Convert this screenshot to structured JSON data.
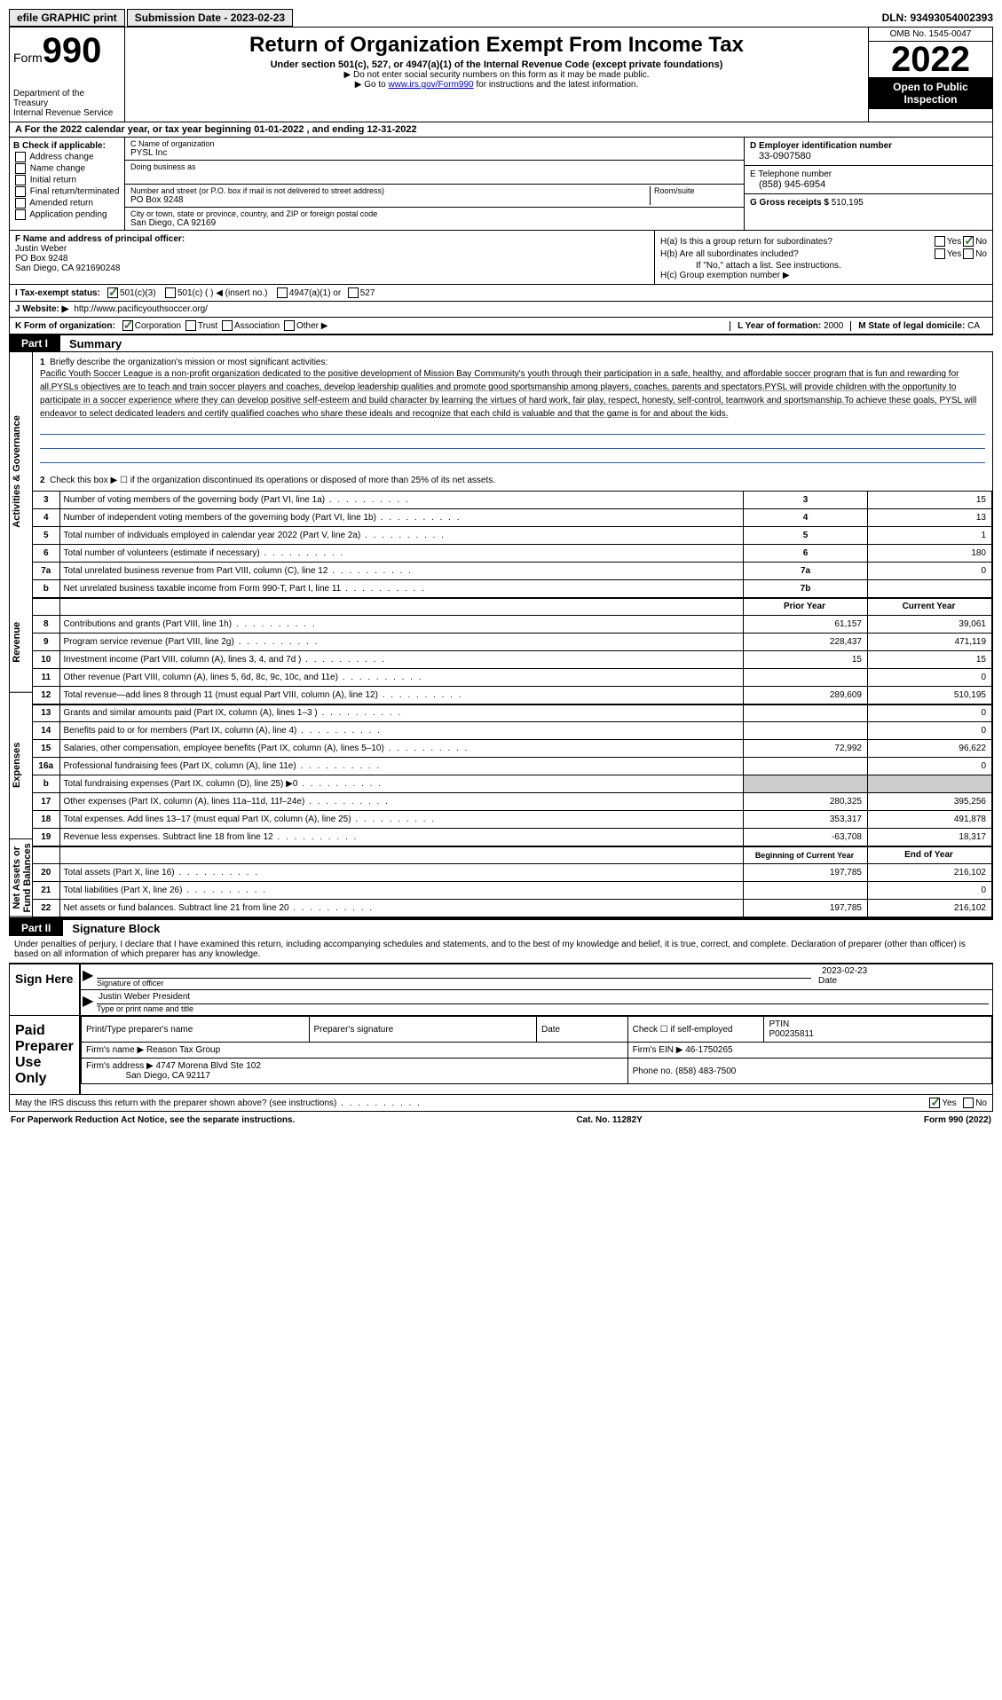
{
  "topbar": {
    "efile": "efile GRAPHIC print",
    "submission_label": "Submission Date - 2023-02-23",
    "dln": "DLN: 93493054002393"
  },
  "header": {
    "form_prefix": "Form",
    "form_num": "990",
    "dept": "Department of the Treasury\nInternal Revenue Service",
    "title": "Return of Organization Exempt From Income Tax",
    "subtitle": "Under section 501(c), 527, or 4947(a)(1) of the Internal Revenue Code (except private foundations)",
    "note1": "▶ Do not enter social security numbers on this form as it may be made public.",
    "note2_pre": "▶ Go to ",
    "note2_link": "www.irs.gov/Form990",
    "note2_post": " for instructions and the latest information.",
    "omb": "OMB No. 1545-0047",
    "year": "2022",
    "open": "Open to Public Inspection"
  },
  "row_a": "A For the 2022 calendar year, or tax year beginning 01-01-2022   , and ending 12-31-2022",
  "section_b": {
    "header": "B Check if applicable:",
    "items": [
      "Address change",
      "Name change",
      "Initial return",
      "Final return/terminated",
      "Amended return",
      "Application pending"
    ]
  },
  "section_c": {
    "c_label": "C Name of organization",
    "org_name": "PYSL Inc",
    "dba_label": "Doing business as",
    "addr_label": "Number and street (or P.O. box if mail is not delivered to street address)",
    "room_label": "Room/suite",
    "addr": "PO Box 9248",
    "city_label": "City or town, state or province, country, and ZIP or foreign postal code",
    "city": "San Diego, CA   92169"
  },
  "section_d": {
    "d_label": "D Employer identification number",
    "ein": "33-0907580",
    "e_label": "E Telephone number",
    "phone": "(858) 945-6954",
    "g_label": "G Gross receipts $",
    "gross": "510,195"
  },
  "section_f": {
    "label": "F  Name and address of principal officer:",
    "name": "Justin Weber",
    "addr1": "PO Box 9248",
    "addr2": "San Diego, CA   921690248"
  },
  "section_h": {
    "ha": "H(a)  Is this a group return for subordinates?",
    "hb": "H(b)  Are all subordinates included?",
    "hb_note": "If \"No,\" attach a list. See instructions.",
    "hc": "H(c)  Group exemption number ▶"
  },
  "row_i": {
    "label": "I   Tax-exempt status:",
    "opts": [
      "501(c)(3)",
      "501(c) (  ) ◀ (insert no.)",
      "4947(a)(1) or",
      "527"
    ]
  },
  "row_j": {
    "label": "J  Website: ▶",
    "url": "http://www.pacificyouthsoccer.org/"
  },
  "row_k": {
    "label": "K Form of organization:",
    "opts": [
      "Corporation",
      "Trust",
      "Association",
      "Other ▶"
    ]
  },
  "row_l": {
    "l_label": "L Year of formation:",
    "l_val": "2000",
    "m_label": "M State of legal domicile:",
    "m_val": "CA"
  },
  "part1": {
    "tab": "Part I",
    "title": "Summary"
  },
  "mission": {
    "num": "1",
    "label": "Briefly describe the organization's mission or most significant activities:",
    "text": "Pacific Youth Soccer League is a non-profit organization dedicated to the positive development of Mission Bay Community's youth through their participation in a safe, healthy, and affordable soccer program that is fun and rewarding for all.PYSLs objectives are to teach and train soccer players and coaches, develop leadership qualities and promote good sportsmanship among players, coaches, parents and spectators.PYSL will provide children with the opportunity to participate in a soccer experience where they can develop positive self-esteem and build character by learning the virtues of hard work, fair play, respect, honesty, self-control, teamwork and sportsmanship.To achieve these goals, PYSL will endeavor to select dedicated leaders and certify qualified coaches who share these ideals and recognize that each child is valuable and that the game is for and about the kids."
  },
  "line2": "Check this box ▶ ☐ if the organization discontinued its operations or disposed of more than 25% of its net assets.",
  "sidebars": {
    "s1": "Activities & Governance",
    "s2": "Revenue",
    "s3": "Expenses",
    "s4": "Net Assets or Fund Balances"
  },
  "rows_single": [
    {
      "n": "3",
      "d": "Number of voting members of the governing body (Part VI, line 1a)",
      "k": "3",
      "v": "15"
    },
    {
      "n": "4",
      "d": "Number of independent voting members of the governing body (Part VI, line 1b)",
      "k": "4",
      "v": "13"
    },
    {
      "n": "5",
      "d": "Total number of individuals employed in calendar year 2022 (Part V, line 2a)",
      "k": "5",
      "v": "1"
    },
    {
      "n": "6",
      "d": "Total number of volunteers (estimate if necessary)",
      "k": "6",
      "v": "180"
    },
    {
      "n": "7a",
      "d": "Total unrelated business revenue from Part VIII, column (C), line 12",
      "k": "7a",
      "v": "0"
    },
    {
      "n": "b",
      "d": "Net unrelated business taxable income from Form 990-T, Part I, line 11",
      "k": "7b",
      "v": ""
    }
  ],
  "headers_py": {
    "prior": "Prior Year",
    "current": "Current Year"
  },
  "rows_revenue": [
    {
      "n": "8",
      "d": "Contributions and grants (Part VIII, line 1h)",
      "p": "61,157",
      "c": "39,061"
    },
    {
      "n": "9",
      "d": "Program service revenue (Part VIII, line 2g)",
      "p": "228,437",
      "c": "471,119"
    },
    {
      "n": "10",
      "d": "Investment income (Part VIII, column (A), lines 3, 4, and 7d )",
      "p": "15",
      "c": "15"
    },
    {
      "n": "11",
      "d": "Other revenue (Part VIII, column (A), lines 5, 6d, 8c, 9c, 10c, and 11e)",
      "p": "",
      "c": "0"
    },
    {
      "n": "12",
      "d": "Total revenue—add lines 8 through 11 (must equal Part VIII, column (A), line 12)",
      "p": "289,609",
      "c": "510,195"
    }
  ],
  "rows_expenses": [
    {
      "n": "13",
      "d": "Grants and similar amounts paid (Part IX, column (A), lines 1–3 )",
      "p": "",
      "c": "0"
    },
    {
      "n": "14",
      "d": "Benefits paid to or for members (Part IX, column (A), line 4)",
      "p": "",
      "c": "0"
    },
    {
      "n": "15",
      "d": "Salaries, other compensation, employee benefits (Part IX, column (A), lines 5–10)",
      "p": "72,992",
      "c": "96,622"
    },
    {
      "n": "16a",
      "d": "Professional fundraising fees (Part IX, column (A), line 11e)",
      "p": "",
      "c": "0"
    },
    {
      "n": "b",
      "d": "Total fundraising expenses (Part IX, column (D), line 25) ▶0",
      "p": "shaded",
      "c": "shaded"
    },
    {
      "n": "17",
      "d": "Other expenses (Part IX, column (A), lines 11a–11d, 11f–24e)",
      "p": "280,325",
      "c": "395,256"
    },
    {
      "n": "18",
      "d": "Total expenses. Add lines 13–17 (must equal Part IX, column (A), line 25)",
      "p": "353,317",
      "c": "491,878"
    },
    {
      "n": "19",
      "d": "Revenue less expenses. Subtract line 18 from line 12",
      "p": "-63,708",
      "c": "18,317"
    }
  ],
  "headers_na": {
    "begin": "Beginning of Current Year",
    "end": "End of Year"
  },
  "rows_net": [
    {
      "n": "20",
      "d": "Total assets (Part X, line 16)",
      "p": "197,785",
      "c": "216,102"
    },
    {
      "n": "21",
      "d": "Total liabilities (Part X, line 26)",
      "p": "",
      "c": "0"
    },
    {
      "n": "22",
      "d": "Net assets or fund balances. Subtract line 21 from line 20",
      "p": "197,785",
      "c": "216,102"
    }
  ],
  "part2": {
    "tab": "Part II",
    "title": "Signature Block"
  },
  "sig_declare": "Under penalties of perjury, I declare that I have examined this return, including accompanying schedules and statements, and to the best of my knowledge and belief, it is true, correct, and complete. Declaration of preparer (other than officer) is based on all information of which preparer has any knowledge.",
  "sign_here": "Sign Here",
  "sig": {
    "officer_label": "Signature of officer",
    "date_label": "Date",
    "date_val": "2023-02-23",
    "name": "Justin Weber  President",
    "name_label": "Type or print name and title"
  },
  "paid_prep": "Paid Preparer Use Only",
  "prep": {
    "h1": "Print/Type preparer's name",
    "h2": "Preparer's signature",
    "h3": "Date",
    "h4": "Check ☐ if self-employed",
    "h5": "PTIN",
    "ptin": "P00235811",
    "firm_name_lbl": "Firm's name   ▶",
    "firm_name": "Reason Tax Group",
    "firm_ein_lbl": "Firm's EIN ▶",
    "firm_ein": "46-1750265",
    "firm_addr_lbl": "Firm's address ▶",
    "firm_addr": "4747 Morena Blvd Ste 102",
    "firm_city": "San Diego, CA   92117",
    "phone_lbl": "Phone no.",
    "phone": "(858) 483-7500"
  },
  "may_irs": "May the IRS discuss this return with the preparer shown above? (see instructions)",
  "footer": {
    "left": "For Paperwork Reduction Act Notice, see the separate instructions.",
    "mid": "Cat. No. 11282Y",
    "right": "Form 990 (2022)"
  }
}
